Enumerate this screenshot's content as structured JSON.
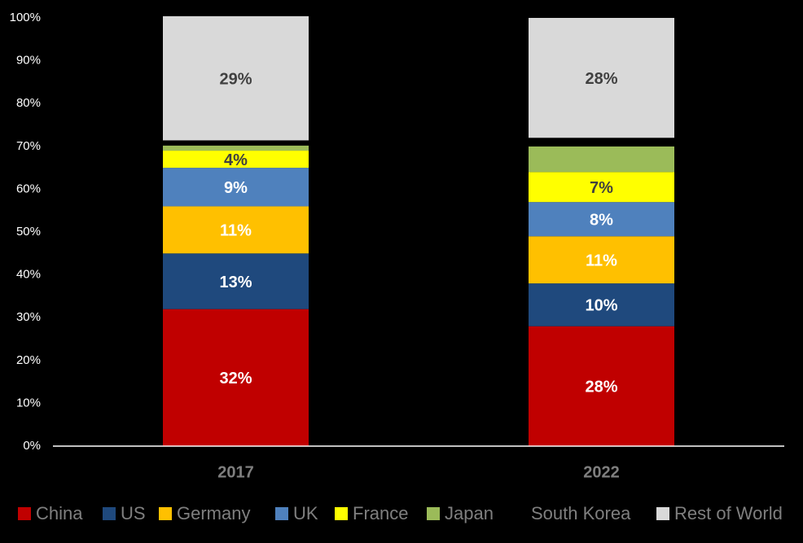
{
  "chart_data": {
    "type": "stacked_bar",
    "categories": [
      "2017",
      "2022"
    ],
    "series": [
      {
        "name": "China",
        "color": "#c00000",
        "label_color": "#ffffff",
        "values": [
          32,
          28
        ],
        "value_labels": [
          "32%",
          "28%"
        ]
      },
      {
        "name": "US",
        "color": "#1f497d",
        "label_color": "#ffffff",
        "values": [
          13,
          10
        ],
        "value_labels": [
          "13%",
          "10%"
        ]
      },
      {
        "name": "Germany",
        "color": "#ffc000",
        "label_color": "#ffffff",
        "values": [
          11,
          11
        ],
        "value_labels": [
          "11%",
          "11%"
        ]
      },
      {
        "name": "UK",
        "color": "#4f81bd",
        "label_color": "#ffffff",
        "values": [
          9,
          8
        ],
        "value_labels": [
          "9%",
          "8%"
        ]
      },
      {
        "name": "France",
        "color": "#ffff00",
        "label_color": "#404040",
        "values": [
          4,
          7
        ],
        "value_labels": [
          "4%",
          "7%"
        ]
      },
      {
        "name": "Japan",
        "color": "#9bbb59",
        "label_color": "#404040",
        "values": [
          1.2,
          6
        ],
        "value_labels": [
          null,
          null
        ]
      },
      {
        "name": "South Korea",
        "color": "#000000",
        "label_color": "#404040",
        "values": [
          1.2,
          2
        ],
        "value_labels": [
          null,
          null
        ]
      },
      {
        "name": "Rest of World",
        "color": "#d9d9d9",
        "label_color": "#404040",
        "values": [
          29,
          28
        ],
        "value_labels": [
          "29%",
          "28%"
        ]
      }
    ],
    "ylim": [
      0,
      100
    ],
    "yticks": [
      {
        "value": 0,
        "label": "0%"
      },
      {
        "value": 10,
        "label": "10%"
      },
      {
        "value": 20,
        "label": "20%"
      },
      {
        "value": 30,
        "label": "30%"
      },
      {
        "value": 40,
        "label": "40%"
      },
      {
        "value": 50,
        "label": "50%"
      },
      {
        "value": 60,
        "label": "60%"
      },
      {
        "value": 70,
        "label": "70%"
      },
      {
        "value": 80,
        "label": "80%"
      },
      {
        "value": 90,
        "label": "90%"
      },
      {
        "value": 100,
        "label": "100%"
      }
    ],
    "grid": false,
    "legend": "bottom"
  }
}
